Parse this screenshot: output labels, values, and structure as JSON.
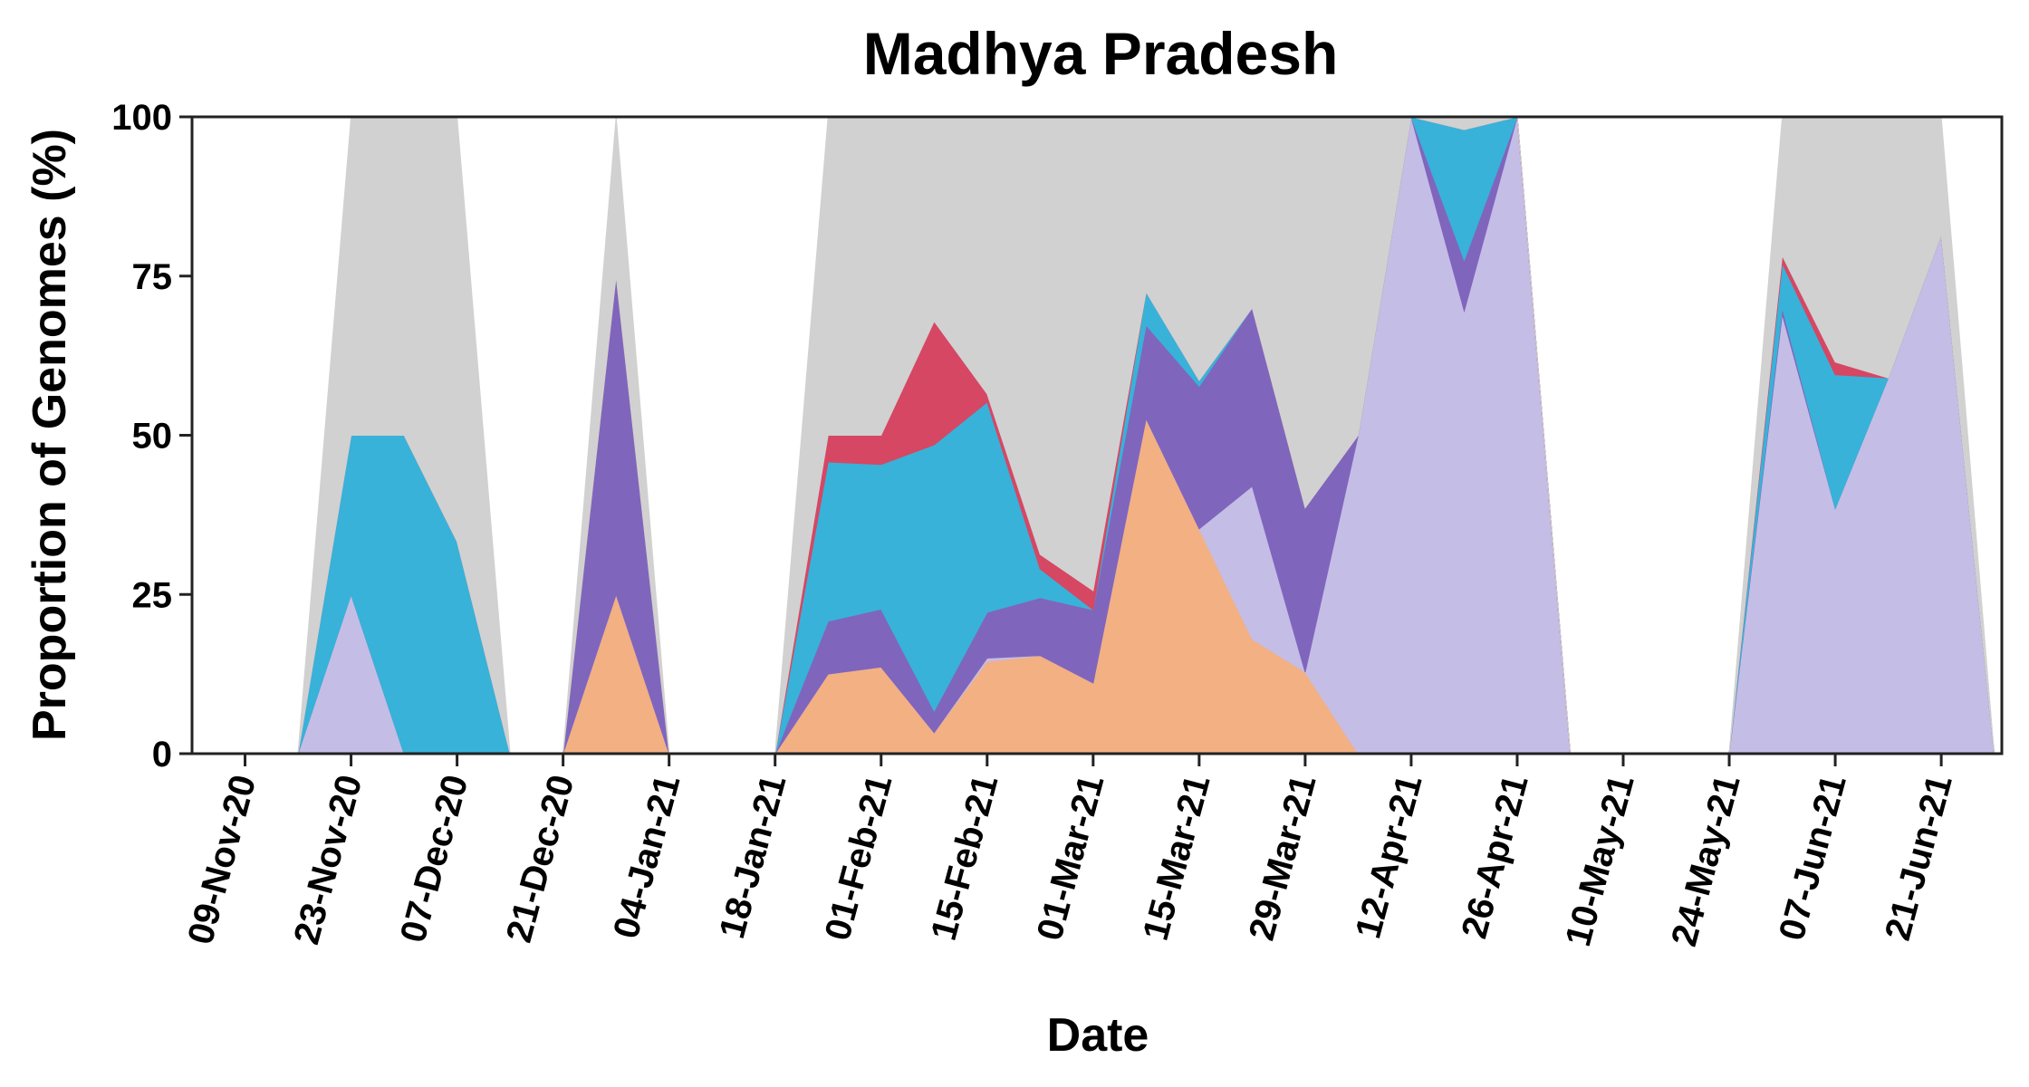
{
  "chart_data": {
    "type": "area",
    "stacked": true,
    "title": "Madhya Pradesh",
    "xlabel": "Date",
    "ylabel": "Proportion of Genomes (%)",
    "ylim": [
      0,
      100
    ],
    "yticks": [
      0,
      25,
      50,
      75,
      100
    ],
    "xlim": [
      "2020-11-02",
      "2021-06-29"
    ],
    "x": [
      "2020-11-09",
      "2020-11-16",
      "2020-11-23",
      "2020-11-30",
      "2020-12-07",
      "2020-12-14",
      "2020-12-21",
      "2020-12-28",
      "2021-01-04",
      "2021-01-11",
      "2021-01-18",
      "2021-01-25",
      "2021-02-01",
      "2021-02-08",
      "2021-02-15",
      "2021-02-22",
      "2021-03-01",
      "2021-03-08",
      "2021-03-15",
      "2021-03-22",
      "2021-03-29",
      "2021-04-05",
      "2021-04-12",
      "2021-04-19",
      "2021-04-26",
      "2021-05-03",
      "2021-05-10",
      "2021-05-17",
      "2021-05-24",
      "2021-05-31",
      "2021-06-07",
      "2021-06-14",
      "2021-06-21",
      "2021-06-28"
    ],
    "xtick_labels": [
      {
        "date": "2020-11-09",
        "label": "09-Nov-20"
      },
      {
        "date": "2020-11-23",
        "label": "23-Nov-20"
      },
      {
        "date": "2020-12-07",
        "label": "07-Dec-20"
      },
      {
        "date": "2020-12-21",
        "label": "21-Dec-20"
      },
      {
        "date": "2021-01-04",
        "label": "04-Jan-21"
      },
      {
        "date": "2021-01-18",
        "label": "18-Jan-21"
      },
      {
        "date": "2021-02-01",
        "label": "01-Feb-21"
      },
      {
        "date": "2021-02-15",
        "label": "15-Feb-21"
      },
      {
        "date": "2021-03-01",
        "label": "01-Mar-21"
      },
      {
        "date": "2021-03-15",
        "label": "15-Mar-21"
      },
      {
        "date": "2021-03-29",
        "label": "29-Mar-21"
      },
      {
        "date": "2021-04-12",
        "label": "12-Apr-21"
      },
      {
        "date": "2021-04-26",
        "label": "26-Apr-21"
      },
      {
        "date": "2021-05-10",
        "label": "10-May-21"
      },
      {
        "date": "2021-05-24",
        "label": "24-May-21"
      },
      {
        "date": "2021-06-07",
        "label": "07-Jun-21"
      },
      {
        "date": "2021-06-21",
        "label": "21-Jun-21"
      }
    ],
    "grid": false,
    "legend": "none",
    "series": [
      {
        "color": "#f2b083",
        "values": [
          0,
          0,
          0,
          0,
          0,
          0,
          0,
          25,
          0,
          0,
          0,
          12.5,
          13.6,
          3.3,
          14.5,
          15.4,
          11.1,
          52.6,
          35.3,
          18,
          12.8,
          0,
          0,
          0,
          0,
          0,
          0,
          0,
          0,
          0,
          0,
          0,
          0,
          0
        ]
      },
      {
        "color": "#c4bde6",
        "values": [
          0,
          0,
          25,
          0,
          0,
          0,
          0,
          0,
          0,
          0,
          0,
          0,
          0,
          0,
          0.5,
          0,
          0,
          0,
          0,
          24,
          0,
          50,
          100,
          69.5,
          100,
          0,
          0,
          0,
          0,
          69,
          38.5,
          59,
          81.5,
          0
        ]
      },
      {
        "color": "#8065bd",
        "values": [
          0,
          0,
          0,
          0,
          0,
          0,
          0,
          50,
          0,
          0,
          0,
          8.3,
          9.1,
          3.4,
          7.2,
          9.1,
          11.5,
          14.7,
          22.4,
          28,
          25.8,
          0,
          0,
          8,
          0,
          0,
          0,
          0,
          0,
          1,
          0,
          0,
          0,
          0
        ]
      },
      {
        "color": "#38b2d9",
        "values": [
          0,
          0,
          25,
          50,
          33.3,
          0,
          0,
          0,
          0,
          0,
          0,
          25,
          22.7,
          41.8,
          33,
          4.5,
          0,
          5.2,
          0.9,
          0,
          0,
          0,
          0,
          20.5,
          0,
          0,
          0,
          0,
          0,
          7,
          21,
          0,
          0,
          0
        ]
      },
      {
        "color": "#d64763",
        "values": [
          0,
          0,
          0,
          0,
          0,
          0,
          0,
          0,
          0,
          0,
          0,
          4.2,
          4.6,
          19.4,
          1.3,
          2.3,
          3,
          0,
          0,
          0,
          0,
          0,
          0,
          0,
          0,
          0,
          0,
          0,
          0,
          1.2,
          2,
          0,
          0,
          0
        ]
      },
      {
        "color": "#d1d1d1",
        "values": [
          0,
          0,
          50,
          50,
          66.7,
          0,
          0,
          25,
          0,
          0,
          0,
          50,
          50,
          32.1,
          43.5,
          68.7,
          74.4,
          27.5,
          41.4,
          30,
          61.4,
          50,
          0,
          2,
          0,
          0,
          0,
          0,
          0,
          21.8,
          38.5,
          41,
          18.5,
          0
        ]
      }
    ]
  }
}
